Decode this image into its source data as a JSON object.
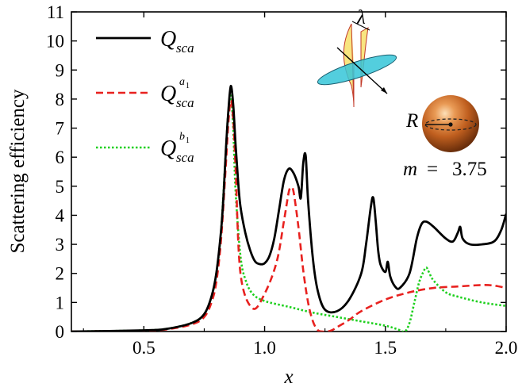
{
  "chart_data": {
    "type": "line",
    "title": "",
    "xlabel": "x",
    "ylabel": "Scattering efficiency",
    "xlim": [
      0.2,
      2.0
    ],
    "ylim": [
      0,
      11
    ],
    "xticks": [
      0.5,
      1.0,
      1.5,
      2.0
    ],
    "xtick_labels": [
      "0.5",
      "1.0",
      "1.5",
      "2.0"
    ],
    "yticks": [
      0,
      1,
      2,
      3,
      4,
      5,
      6,
      7,
      8,
      9,
      10,
      11
    ],
    "ytick_labels": [
      "0",
      "1",
      "2",
      "3",
      "4",
      "5",
      "6",
      "7",
      "8",
      "9",
      "10",
      "11"
    ],
    "grid": false,
    "legend_position": "top-left",
    "series": [
      {
        "name": "Q_sca",
        "label_main": "Q",
        "label_sub": "sca",
        "label_sup": "",
        "label_sup_index": "",
        "color": "#000000",
        "style": "solid",
        "x": [
          0.2,
          0.5,
          0.6,
          0.7,
          0.75,
          0.78,
          0.8,
          0.82,
          0.83,
          0.84,
          0.85,
          0.86,
          0.87,
          0.88,
          0.89,
          0.9,
          0.92,
          0.94,
          0.96,
          0.98,
          1.0,
          1.02,
          1.04,
          1.06,
          1.08,
          1.1,
          1.12,
          1.14,
          1.15,
          1.16,
          1.17,
          1.18,
          1.2,
          1.22,
          1.25,
          1.3,
          1.35,
          1.4,
          1.42,
          1.44,
          1.45,
          1.46,
          1.47,
          1.48,
          1.5,
          1.51,
          1.52,
          1.54,
          1.56,
          1.6,
          1.63,
          1.65,
          1.67,
          1.7,
          1.75,
          1.78,
          1.8,
          1.81,
          1.82,
          1.85,
          1.9,
          1.95,
          1.98,
          2.0
        ],
        "y": [
          0.0,
          0.04,
          0.1,
          0.3,
          0.6,
          1.2,
          2.0,
          3.5,
          4.7,
          6.3,
          7.6,
          8.45,
          7.8,
          6.4,
          5.2,
          4.3,
          3.4,
          2.8,
          2.42,
          2.32,
          2.35,
          2.6,
          3.2,
          4.2,
          5.2,
          5.6,
          5.45,
          5.0,
          4.6,
          5.8,
          6.05,
          4.5,
          2.5,
          1.4,
          0.75,
          0.7,
          1.1,
          2.0,
          3.0,
          4.3,
          4.6,
          3.8,
          2.8,
          2.3,
          2.05,
          2.4,
          1.9,
          1.55,
          1.5,
          2.0,
          3.2,
          3.7,
          3.78,
          3.6,
          3.2,
          3.1,
          3.4,
          3.6,
          3.2,
          3.0,
          3.0,
          3.1,
          3.5,
          4.05
        ]
      },
      {
        "name": "Q_sca^a1",
        "label_main": "Q",
        "label_sub": "sca",
        "label_sup": "a",
        "label_sup_index": "1",
        "color": "#e8211f",
        "style": "dashed",
        "x": [
          0.2,
          0.5,
          0.6,
          0.7,
          0.75,
          0.78,
          0.8,
          0.82,
          0.84,
          0.85,
          0.86,
          0.87,
          0.88,
          0.9,
          0.95,
          1.0,
          1.05,
          1.08,
          1.1,
          1.11,
          1.12,
          1.14,
          1.16,
          1.18,
          1.2,
          1.22,
          1.24,
          1.26,
          1.28,
          1.3,
          1.35,
          1.4,
          1.5,
          1.6,
          1.7,
          1.8,
          1.9,
          1.95,
          2.0
        ],
        "y": [
          0.0,
          0.03,
          0.08,
          0.25,
          0.5,
          1.0,
          1.7,
          3.2,
          5.8,
          7.2,
          7.95,
          7.3,
          5.6,
          2.0,
          0.8,
          1.3,
          2.4,
          3.8,
          4.8,
          4.95,
          4.8,
          3.6,
          2.1,
          1.0,
          0.35,
          0.05,
          0.0,
          0.0,
          0.05,
          0.15,
          0.4,
          0.7,
          1.1,
          1.35,
          1.5,
          1.55,
          1.6,
          1.58,
          1.5
        ]
      },
      {
        "name": "Q_sca^b1",
        "label_main": "Q",
        "label_sub": "sca",
        "label_sup": "b",
        "label_sup_index": "1",
        "color": "#1fd01f",
        "style": "dotted",
        "x": [
          0.2,
          0.5,
          0.6,
          0.7,
          0.75,
          0.78,
          0.8,
          0.82,
          0.84,
          0.85,
          0.86,
          0.87,
          0.88,
          0.9,
          0.92,
          0.95,
          1.0,
          1.1,
          1.2,
          1.3,
          1.4,
          1.5,
          1.55,
          1.58,
          1.6,
          1.62,
          1.64,
          1.66,
          1.67,
          1.68,
          1.7,
          1.75,
          1.8,
          1.9,
          2.0
        ],
        "y": [
          0.0,
          0.04,
          0.1,
          0.3,
          0.6,
          1.2,
          2.0,
          3.5,
          6.3,
          7.6,
          8.1,
          7.0,
          4.8,
          2.6,
          1.8,
          1.3,
          1.05,
          0.85,
          0.65,
          0.5,
          0.35,
          0.2,
          0.08,
          0.0,
          0.3,
          1.0,
          1.7,
          2.1,
          2.2,
          2.05,
          1.75,
          1.35,
          1.2,
          1.0,
          0.88
        ]
      }
    ],
    "annotations": {
      "wavelength_symbol": "λ",
      "radius_symbol": "R",
      "index_symbol": "m",
      "index_equals": "=",
      "index_value": "3.75"
    }
  }
}
